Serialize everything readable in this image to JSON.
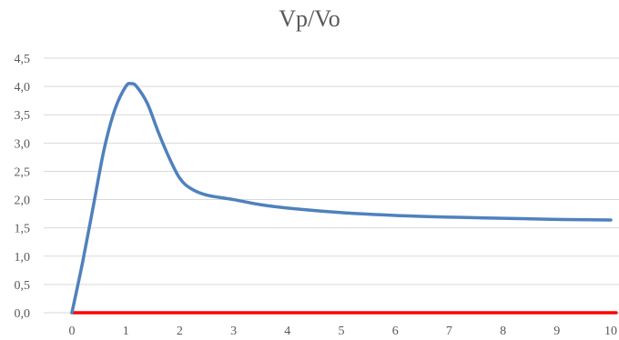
{
  "chart_data": {
    "type": "line",
    "title": "Vp/Vo",
    "xlabel": "",
    "ylabel": "",
    "xlim": [
      0,
      10
    ],
    "ylim": [
      0,
      4.5
    ],
    "x_ticks": [
      0,
      1,
      2,
      3,
      4,
      5,
      6,
      7,
      8,
      9,
      10
    ],
    "x_tick_labels": [
      "0",
      "1",
      "2",
      "3",
      "4",
      "5",
      "6",
      "7",
      "8",
      "9",
      "10"
    ],
    "y_ticks": [
      0,
      0.5,
      1.0,
      1.5,
      2.0,
      2.5,
      3.0,
      3.5,
      4.0,
      4.5
    ],
    "y_tick_labels": [
      "0,0",
      "0,5",
      "1,0",
      "1,5",
      "2,0",
      "2,5",
      "3,0",
      "3,5",
      "4,0",
      "4,5"
    ],
    "grid": "horizontal",
    "legend": "none",
    "series": [
      {
        "color": "#4F81BD",
        "x": [
          0,
          0.2,
          0.4,
          0.6,
          0.8,
          1.0,
          1.1,
          1.2,
          1.4,
          1.6,
          1.8,
          2.0,
          2.2,
          2.5,
          3.0,
          3.5,
          4.0,
          5.0,
          6.0,
          7.0,
          8.0,
          9.0,
          10.0
        ],
        "y": [
          0,
          0.9,
          1.9,
          2.9,
          3.6,
          4.0,
          4.05,
          4.0,
          3.7,
          3.2,
          2.75,
          2.38,
          2.2,
          2.08,
          2.0,
          1.91,
          1.85,
          1.77,
          1.72,
          1.69,
          1.67,
          1.65,
          1.64
        ]
      },
      {
        "color": "#FF0000",
        "x": [
          0,
          10.1
        ],
        "y": [
          0,
          0
        ]
      }
    ]
  }
}
